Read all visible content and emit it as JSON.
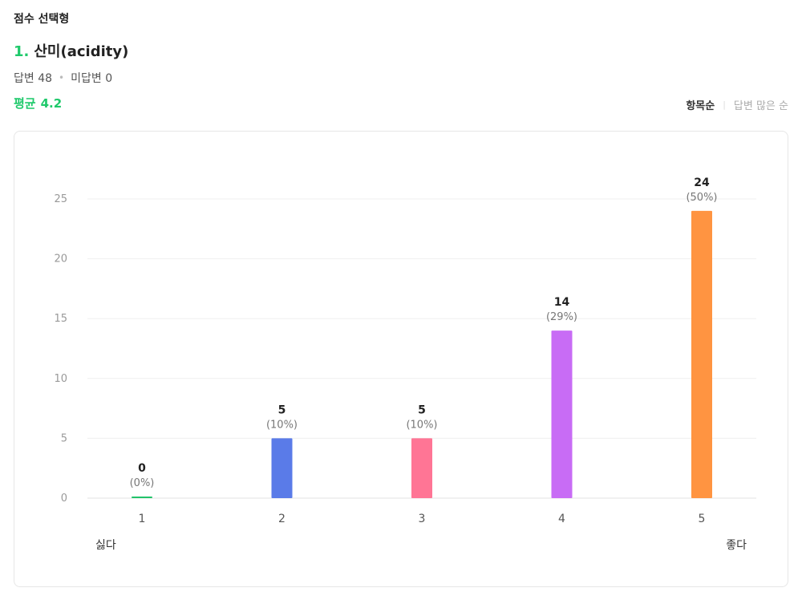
{
  "section": {
    "label": "점수 선택형"
  },
  "question": {
    "number": "1.",
    "title": "산미(acidity)"
  },
  "stats": {
    "answered": "답변 48",
    "unanswered": "미답변 0"
  },
  "average": {
    "label": "평균",
    "value": "4.2"
  },
  "sort": {
    "by_item": "항목순",
    "by_count": "답변 많은 순",
    "active": "by_item"
  },
  "chart_data": {
    "type": "bar",
    "categories": [
      "1",
      "2",
      "3",
      "4",
      "5"
    ],
    "values": [
      0,
      5,
      5,
      14,
      24
    ],
    "percent_labels": [
      "(0%)",
      "(10%)",
      "(10%)",
      "(29%)",
      "(50%)"
    ],
    "colors": [
      "#22c36a",
      "#5a7be8",
      "#ff7595",
      "#c86cf5",
      "#ff9441"
    ],
    "ylim": [
      0,
      25
    ],
    "yticks": [
      0,
      5,
      10,
      15,
      20,
      25
    ],
    "grid": true,
    "legend": "none",
    "scale_low_label": "싫다",
    "scale_high_label": "좋다"
  }
}
